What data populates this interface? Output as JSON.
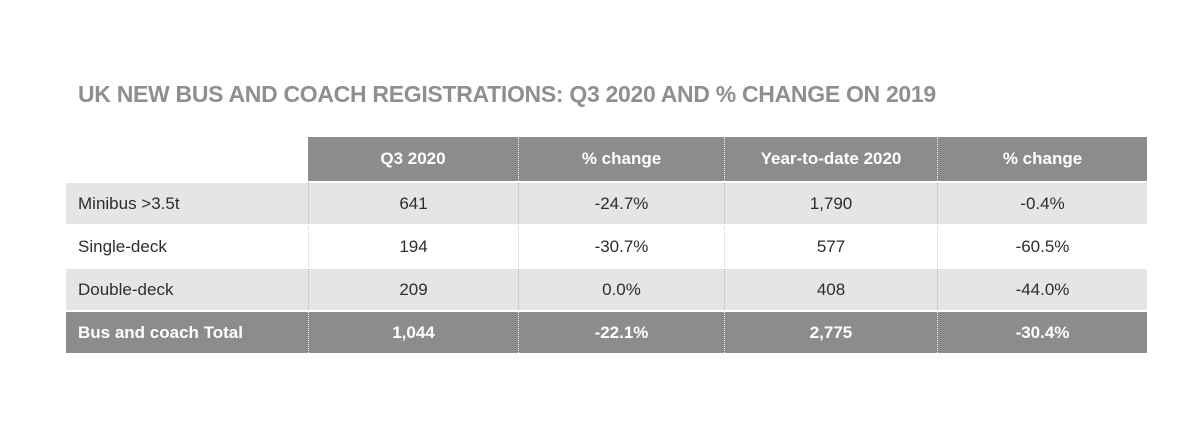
{
  "title": "UK NEW BUS AND COACH REGISTRATIONS: Q3 2020 AND % CHANGE ON 2019",
  "table": {
    "columns": [
      "Q3 2020",
      "% change",
      "Year-to-date 2020",
      "% change"
    ],
    "rows": [
      {
        "label": "Minibus >3.5t",
        "q3": "641",
        "q3_change": "-24.7%",
        "ytd": "1,790",
        "ytd_change": "-0.4%"
      },
      {
        "label": "Single-deck",
        "q3": "194",
        "q3_change": "-30.7%",
        "ytd": "577",
        "ytd_change": "-60.5%"
      },
      {
        "label": "Double-deck",
        "q3": "209",
        "q3_change": "0.0%",
        "ytd": "408",
        "ytd_change": "-44.0%"
      }
    ],
    "total_row": {
      "label": "Bus and coach Total",
      "q3": "1,044",
      "q3_change": "-22.1%",
      "ytd": "2,775",
      "ytd_change": "-30.4%"
    }
  },
  "colors": {
    "title_color": "#8f8f8f",
    "header_bg": "#8c8c8c",
    "row_alt_bg": "#e5e5e5",
    "total_bg": "#8c8c8c"
  },
  "chart_data": {
    "type": "table",
    "title": "UK NEW BUS AND COACH REGISTRATIONS: Q3 2020 AND % CHANGE ON 2019",
    "columns": [
      "",
      "Q3 2020",
      "% change",
      "Year-to-date 2020",
      "% change"
    ],
    "rows": [
      [
        "Minibus >3.5t",
        641,
        -24.7,
        1790,
        -0.4
      ],
      [
        "Single-deck",
        194,
        -30.7,
        577,
        -60.5
      ],
      [
        "Double-deck",
        209,
        0.0,
        408,
        -44.0
      ],
      [
        "Bus and coach Total",
        1044,
        -22.1,
        2775,
        -30.4
      ]
    ]
  }
}
